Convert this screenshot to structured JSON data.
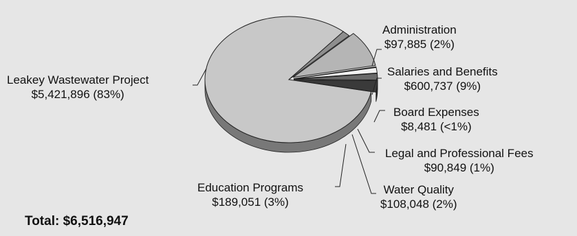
{
  "chart_data": {
    "type": "pie",
    "style": "3d-exploded",
    "slices": [
      {
        "label": "Leakey Wastewater Project",
        "value": 5421896,
        "display": "$5,421,896 (83%)",
        "color": "#c8c8c8"
      },
      {
        "label": "Administration",
        "value": 97885,
        "display": "$97,885 (2%)",
        "color": "#8e8e8e"
      },
      {
        "label": "Salaries and Benefits",
        "value": 600737,
        "display": "$600,737 (9%)",
        "color": "#b5b5b5"
      },
      {
        "label": "Board Expenses",
        "value": 8481,
        "display": "$8,481 (<1%)",
        "color": "#1e1e1e"
      },
      {
        "label": "Legal and Professional Fees",
        "value": 90849,
        "display": "$90,849 (1%)",
        "color": "#f2f2f2"
      },
      {
        "label": "Water Quality",
        "value": 108048,
        "display": "$108,048 (2%)",
        "color": "#6a6a6a"
      },
      {
        "label": "Education Programs",
        "value": 189051,
        "display": "$189,051 (3%)",
        "color": "#3a3a3a"
      }
    ],
    "total_label": "Total:",
    "total_value": "$6,516,947"
  }
}
